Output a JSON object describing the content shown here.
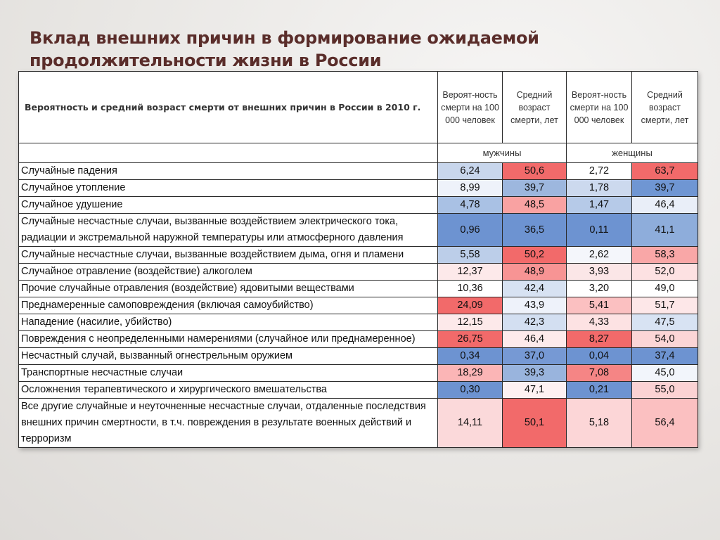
{
  "title": "Вклад внешних причин в формирование ожидаемой продолжительности жизни в России",
  "table": {
    "header_label": "Вероятность и средний возраст смерти от внешних причин в России в 2010 г.",
    "columns": [
      "Вероят-ность смерти на 100 000 человек",
      "Средний возраст смерти, лет",
      "Вероят-ность смерти на 100 000 человек",
      "Средний возраст смерти, лет"
    ],
    "groups": [
      "мужчины",
      "женщины"
    ],
    "rows": [
      {
        "label": "Случайные падения",
        "values": [
          "6,24",
          "50,6",
          "2,72",
          "63,7"
        ],
        "colors": [
          "#c8d6ec",
          "#f26a6a",
          "#ffffff",
          "#f26a6a"
        ]
      },
      {
        "label": "Случайное утопление",
        "values": [
          "8,99",
          "39,7",
          "1,78",
          "39,7"
        ],
        "colors": [
          "#eef2fa",
          "#9db7de",
          "#ccd9ee",
          "#6f96d3"
        ]
      },
      {
        "label": "Случайное удушение",
        "values": [
          "4,78",
          "48,5",
          "1,47",
          "46,4"
        ],
        "colors": [
          "#a9c1e4",
          "#f9a2a2",
          "#b6cae8",
          "#e9eef8"
        ]
      },
      {
        "label": "Случайные несчастные случаи, вызванные воздействием электрического тока, радиации и экстремальной наружной температуры или атмосферного давления",
        "values": [
          "0,96",
          "36,5",
          "0,11",
          "41,1"
        ],
        "colors": [
          "#6d93d1",
          "#6d93d1",
          "#6d93d1",
          "#8eaddb"
        ]
      },
      {
        "label": "Случайные несчастные случаи, вызванные воздействием дыма, огня и пламени",
        "values": [
          "5,58",
          "50,2",
          "2,62",
          "58,3"
        ],
        "colors": [
          "#bccee9",
          "#f26a6a",
          "#f4f6fb",
          "#f9a7a7"
        ]
      },
      {
        "label": "Случайное отравление (воздействие) алкоголем",
        "values": [
          "12,37",
          "48,9",
          "3,93",
          "52,0"
        ],
        "colors": [
          "#fde9ea",
          "#f79494",
          "#fbe6e7",
          "#fde1e2"
        ]
      },
      {
        "label": "Прочие случайные отравления (воздействие) ядовитыми веществами",
        "values": [
          "10,36",
          "42,4",
          "3,20",
          "49,0"
        ],
        "colors": [
          "#ffffff",
          "#d7e2f2",
          "#ffffff",
          "#ffffff"
        ]
      },
      {
        "label": "Преднамеренные самоповреждения (включая самоубийство)",
        "values": [
          "24,09",
          "43,9",
          "5,41",
          "51,7"
        ],
        "colors": [
          "#f26a6a",
          "#eef2fa",
          "#fbc0c1",
          "#fde7e8"
        ]
      },
      {
        "label": "Нападение (насилие, убийство)",
        "values": [
          "12,15",
          "42,3",
          "4,33",
          "47,5"
        ],
        "colors": [
          "#fde9ea",
          "#d3dff1",
          "#fde2e3",
          "#d8e3f3"
        ]
      },
      {
        "label": "Повреждения с неопределенными намерениями (случайное или преднамеренное)",
        "values": [
          "26,75",
          "46,4",
          "8,27",
          "54,0"
        ],
        "colors": [
          "#f26a6a",
          "#fdeaeb",
          "#f26a6a",
          "#fbd5d6"
        ]
      },
      {
        "label": "Несчастный случай, вызванный огнестрельным оружием",
        "values": [
          "0,34",
          "37,0",
          "0,04",
          "37,4"
        ],
        "colors": [
          "#6d93d1",
          "#7699d4",
          "#6d93d1",
          "#6d93d1"
        ]
      },
      {
        "label": "Транспортные несчастные случаи",
        "values": [
          "18,29",
          "39,3",
          "7,08",
          "45,0"
        ],
        "colors": [
          "#fbb5b6",
          "#99b4dd",
          "#f58585",
          "#f2f5fb"
        ]
      },
      {
        "label": "Осложнения терапевтического и хирургического вмешательства",
        "values": [
          "0,30",
          "47,1",
          "0,21",
          "55,0"
        ],
        "colors": [
          "#6d93d1",
          "#fdf1f2",
          "#6d93d1",
          "#fbd2d3"
        ]
      },
      {
        "label": "Все другие случайные и неуточненные несчастные случаи, отдаленные последствия внешних причин смертности, в т.ч. повреждения в результате военных действий и терроризм",
        "values": [
          "14,11",
          "50,1",
          "5,18",
          "56,4"
        ],
        "colors": [
          "#fbd9da",
          "#f26a6a",
          "#fcd6d7",
          "#fbc0c1"
        ]
      }
    ]
  }
}
